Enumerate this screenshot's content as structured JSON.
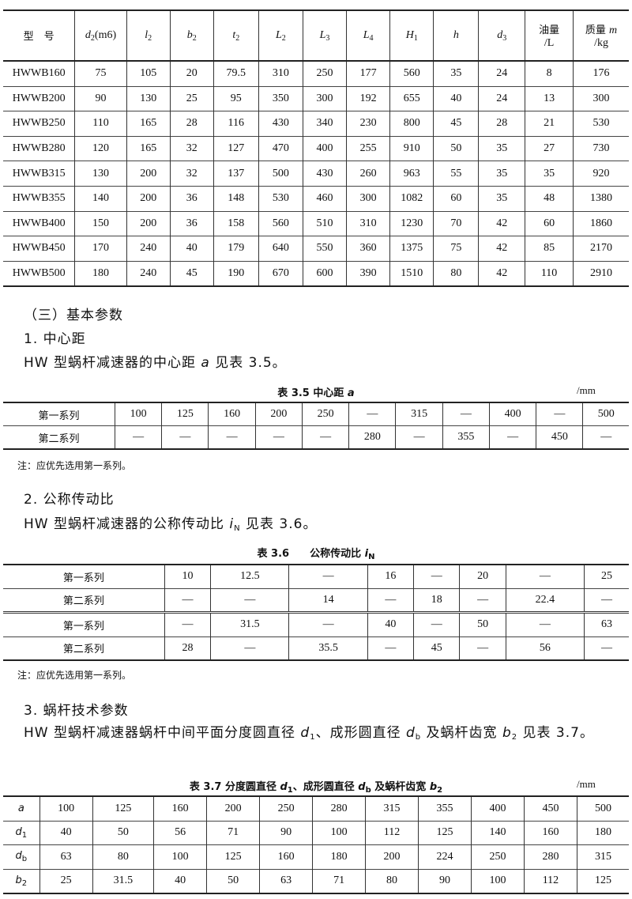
{
  "table_dims": {
    "headers": [
      {
        "main": "型　号"
      },
      {
        "it": "d",
        "sub": "2",
        "rest": "(m6)"
      },
      {
        "it": "l",
        "sub": "2"
      },
      {
        "it": "b",
        "sub": "2"
      },
      {
        "it": "t",
        "sub": "2"
      },
      {
        "it": "L",
        "sub": "2"
      },
      {
        "it": "L",
        "sub": "3"
      },
      {
        "it": "L",
        "sub": "4"
      },
      {
        "it": "H",
        "sub": "1"
      },
      {
        "it": "h"
      },
      {
        "it": "d",
        "sub": "3"
      },
      {
        "main": "油量",
        "line2": "/L"
      },
      {
        "main": "质量 ",
        "it": "m",
        "line2": "/kg"
      }
    ],
    "rows": [
      [
        "HWWB160",
        "75",
        "105",
        "20",
        "79.5",
        "310",
        "250",
        "177",
        "560",
        "35",
        "24",
        "8",
        "176"
      ],
      [
        "HWWB200",
        "90",
        "130",
        "25",
        "95",
        "350",
        "300",
        "192",
        "655",
        "40",
        "24",
        "13",
        "300"
      ],
      [
        "HWWB250",
        "110",
        "165",
        "28",
        "116",
        "430",
        "340",
        "230",
        "800",
        "45",
        "28",
        "21",
        "530"
      ],
      [
        "HWWB280",
        "120",
        "165",
        "32",
        "127",
        "470",
        "400",
        "255",
        "910",
        "50",
        "35",
        "27",
        "730"
      ],
      [
        "HWWB315",
        "130",
        "200",
        "32",
        "137",
        "500",
        "430",
        "260",
        "963",
        "55",
        "35",
        "35",
        "920"
      ],
      [
        "HWWB355",
        "140",
        "200",
        "36",
        "148",
        "530",
        "460",
        "300",
        "1082",
        "60",
        "35",
        "48",
        "1380"
      ],
      [
        "HWWB400",
        "150",
        "200",
        "36",
        "158",
        "560",
        "510",
        "310",
        "1230",
        "70",
        "42",
        "60",
        "1860"
      ],
      [
        "HWWB450",
        "170",
        "240",
        "40",
        "179",
        "640",
        "550",
        "360",
        "1375",
        "75",
        "42",
        "85",
        "2170"
      ],
      [
        "HWWB500",
        "180",
        "240",
        "45",
        "190",
        "670",
        "600",
        "390",
        "1510",
        "80",
        "42",
        "110",
        "2910"
      ]
    ]
  },
  "section_heading": "（三）基本参数",
  "s1": {
    "heading": "1. 中心距",
    "para": [
      {
        "t": "HW 型蜗杆减速器的中心距 "
      },
      {
        "i": "a"
      },
      {
        "t": " 见表 3.5。"
      }
    ],
    "caption": [
      {
        "t": "表 3.5 中心距 "
      },
      {
        "i": "a"
      }
    ],
    "unit": "/mm",
    "rows": [
      [
        "第一系列",
        "100",
        "125",
        "160",
        "200",
        "250",
        "—",
        "315",
        "—",
        "400",
        "—",
        "500"
      ],
      [
        "第二系列",
        "—",
        "—",
        "—",
        "—",
        "—",
        "280",
        "—",
        "355",
        "—",
        "450",
        "—"
      ]
    ],
    "note": "注：应优先选用第一系列。"
  },
  "s2": {
    "heading": "2. 公称传动比",
    "para": [
      {
        "t": "HW 型蜗杆减速器的公称传动比 "
      },
      {
        "i": "i",
        "sub": "N"
      },
      {
        "t": " 见表 3.6。"
      }
    ],
    "caption": [
      {
        "t": "表 3.6　　公称传动比 "
      },
      {
        "i": "i",
        "sub": "N"
      }
    ],
    "rows": [
      [
        "第一系列",
        "10",
        "12.5",
        "—",
        "16",
        "—",
        "20",
        "—",
        "25"
      ],
      [
        "第二系列",
        "—",
        "—",
        "14",
        "—",
        "18",
        "—",
        "22.4",
        "—"
      ],
      [
        "第一系列",
        "—",
        "31.5",
        "—",
        "40",
        "—",
        "50",
        "—",
        "63"
      ],
      [
        "第二系列",
        "28",
        "—",
        "35.5",
        "—",
        "45",
        "—",
        "56",
        "—"
      ]
    ],
    "note": "注：应优先选用第一系列。"
  },
  "s3": {
    "heading": "3. 蜗杆技术参数",
    "para": [
      {
        "t": "HW 型蜗杆减速器蜗杆中间平面分度圆直径 "
      },
      {
        "i": "d",
        "sub": "1"
      },
      {
        "t": "、成形圆直径 "
      },
      {
        "i": "d",
        "sub": "b"
      },
      {
        "t": " 及蜗杆齿宽 "
      },
      {
        "i": "b",
        "sub": "2"
      },
      {
        "t": " 见表 3.7。"
      }
    ],
    "caption": [
      {
        "t": "表 3.7 分度圆直径 "
      },
      {
        "i": "d",
        "sub": "1"
      },
      {
        "t": "、成形圆直径 "
      },
      {
        "i": "d",
        "sub": "b"
      },
      {
        "t": " 及蜗杆齿宽 "
      },
      {
        "i": "b",
        "sub": "2"
      }
    ],
    "unit": "/mm",
    "row_labels": [
      {
        "i": "a"
      },
      {
        "i": "d",
        "sub": "1"
      },
      {
        "i": "d",
        "sub": "b"
      },
      {
        "i": "b",
        "sub": "2"
      }
    ],
    "rows": [
      [
        "100",
        "125",
        "160",
        "200",
        "250",
        "280",
        "315",
        "355",
        "400",
        "450",
        "500"
      ],
      [
        "40",
        "50",
        "56",
        "71",
        "90",
        "100",
        "112",
        "125",
        "140",
        "160",
        "180"
      ],
      [
        "63",
        "80",
        "100",
        "125",
        "160",
        "180",
        "200",
        "224",
        "250",
        "280",
        "315"
      ],
      [
        "25",
        "31.5",
        "40",
        "50",
        "63",
        "71",
        "80",
        "90",
        "100",
        "112",
        "125"
      ]
    ]
  }
}
